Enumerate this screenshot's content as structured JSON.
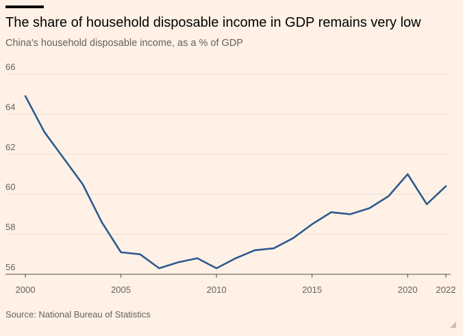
{
  "title": "The share of household disposable income in GDP remains very low",
  "subtitle": "China's household disposable income, as a % of GDP",
  "source": "Source: National Bureau of Statistics",
  "colors": {
    "line": "#2B5A8F",
    "background": "#FFF1E5",
    "grid": "#EADFD5"
  },
  "chart_data": {
    "type": "line",
    "title": "The share of household disposable income in GDP remains very low",
    "subtitle": "China's household disposable income, as a % of GDP",
    "xlabel": "",
    "ylabel": "",
    "xlim": [
      2000,
      2022
    ],
    "ylim": [
      56,
      66
    ],
    "x_ticks": [
      "2000",
      "2005",
      "2010",
      "2015",
      "2020",
      "2022"
    ],
    "y_ticks": [
      "56",
      "58",
      "60",
      "62",
      "64",
      "66"
    ],
    "grid": true,
    "legend": "none",
    "series": [
      {
        "x": [
          2000,
          2001,
          2002,
          2003,
          2004,
          2005,
          2006,
          2007,
          2008,
          2009,
          2010,
          2011,
          2012,
          2013,
          2014,
          2015,
          2016,
          2017,
          2018,
          2019,
          2020,
          2021,
          2022
        ],
        "values": [
          64.9,
          63.1,
          61.8,
          60.5,
          58.6,
          57.1,
          57.0,
          56.3,
          56.6,
          56.8,
          56.3,
          56.8,
          57.2,
          57.3,
          57.8,
          58.5,
          59.1,
          59.0,
          59.3,
          59.9,
          61.0,
          59.5,
          60.4
        ]
      }
    ]
  }
}
